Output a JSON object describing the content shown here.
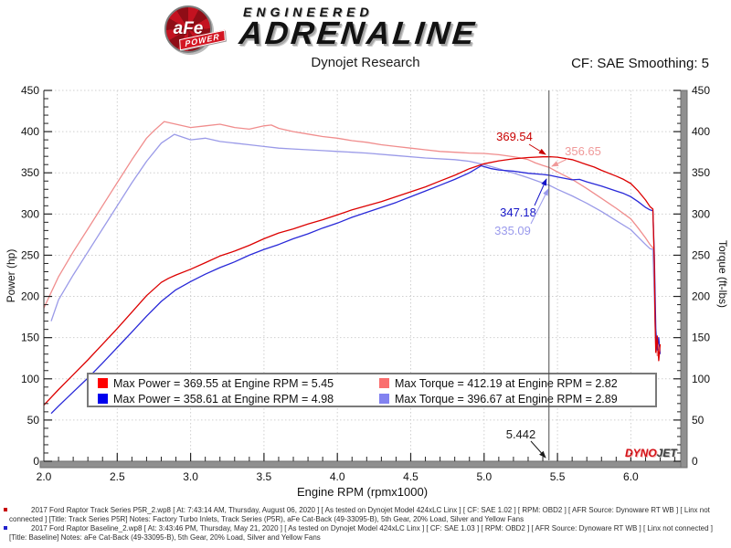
{
  "header": {
    "brand": {
      "badge_text": "aFe",
      "badge_sub": "POWER",
      "line1": "ENGINEERED",
      "line2": "ADRENALINE"
    },
    "title": "Dynojet Research",
    "cf_label": "CF: SAE Smoothing: 5"
  },
  "watermark": {
    "part1": "DYNO",
    "part2": "JET"
  },
  "legend": {
    "items": [
      {
        "swatch": "#ff0000",
        "text": "Max Power = 369.55 at Engine RPM = 5.45"
      },
      {
        "swatch": "#fa6e6e",
        "text": "Max Torque = 412.19 at Engine RPM = 2.82"
      },
      {
        "swatch": "#0000ee",
        "text": "Max Power = 358.61 at Engine RPM = 4.98"
      },
      {
        "swatch": "#8282f0",
        "text": "Max Torque = 396.67 at Engine RPM = 2.89"
      }
    ]
  },
  "chart_data": {
    "type": "line",
    "title": "Dynojet Research",
    "xlabel": "Engine RPM (rpmx1000)",
    "ylabel_left": "Power (hp)",
    "ylabel_right": "Torque (ft-lbs)",
    "xlim": [
      2.0,
      6.34
    ],
    "ylim": [
      0,
      450
    ],
    "x_ticks": [
      2.0,
      2.5,
      3.0,
      3.5,
      4.0,
      4.5,
      5.0,
      5.5,
      6.0
    ],
    "y_ticks": [
      0,
      50,
      100,
      150,
      200,
      250,
      300,
      350,
      400,
      450
    ],
    "grid": true,
    "legend_position": "bottom-center-inside",
    "cursor": {
      "x": 5.442,
      "label": "5.442"
    },
    "series": [
      {
        "id": "track-torque",
        "name": "Track Series P5R Torque (ft-lbs)",
        "color": "#f08d8d",
        "axis": "right",
        "points": [
          [
            2.0,
            186
          ],
          [
            2.1,
            224
          ],
          [
            2.2,
            254
          ],
          [
            2.3,
            282
          ],
          [
            2.4,
            310
          ],
          [
            2.5,
            338
          ],
          [
            2.6,
            366
          ],
          [
            2.7,
            392
          ],
          [
            2.75,
            401
          ],
          [
            2.82,
            412.19
          ],
          [
            2.9,
            409
          ],
          [
            3.0,
            405
          ],
          [
            3.1,
            407
          ],
          [
            3.2,
            409
          ],
          [
            3.3,
            405
          ],
          [
            3.4,
            403
          ],
          [
            3.5,
            407
          ],
          [
            3.55,
            408
          ],
          [
            3.6,
            404
          ],
          [
            3.7,
            400
          ],
          [
            3.8,
            397
          ],
          [
            3.9,
            394
          ],
          [
            4.0,
            392
          ],
          [
            4.1,
            389
          ],
          [
            4.2,
            387
          ],
          [
            4.3,
            384
          ],
          [
            4.4,
            382
          ],
          [
            4.5,
            380
          ],
          [
            4.6,
            378
          ],
          [
            4.7,
            376
          ],
          [
            4.8,
            375
          ],
          [
            4.9,
            374
          ],
          [
            5.0,
            373.5
          ],
          [
            5.1,
            372
          ],
          [
            5.2,
            369.5
          ],
          [
            5.25,
            368
          ],
          [
            5.3,
            366
          ],
          [
            5.35,
            362
          ],
          [
            5.4,
            359
          ],
          [
            5.442,
            356.65
          ],
          [
            5.5,
            351
          ],
          [
            5.6,
            342
          ],
          [
            5.7,
            331
          ],
          [
            5.8,
            319
          ],
          [
            5.9,
            307
          ],
          [
            6.0,
            294
          ],
          [
            6.05,
            283
          ],
          [
            6.1,
            271
          ],
          [
            6.13,
            263
          ],
          [
            6.15,
            259
          ],
          [
            6.16,
            210
          ],
          [
            6.17,
            150
          ],
          [
            6.18,
            128
          ],
          [
            6.2,
            133
          ]
        ]
      },
      {
        "id": "baseline-torque",
        "name": "Baseline Torque (ft-lbs)",
        "color": "#9a9ae8",
        "axis": "right",
        "points": [
          [
            2.05,
            170
          ],
          [
            2.1,
            196
          ],
          [
            2.2,
            226
          ],
          [
            2.3,
            254
          ],
          [
            2.4,
            282
          ],
          [
            2.5,
            310
          ],
          [
            2.6,
            338
          ],
          [
            2.7,
            364
          ],
          [
            2.8,
            386
          ],
          [
            2.89,
            396.67
          ],
          [
            3.0,
            390
          ],
          [
            3.1,
            392
          ],
          [
            3.2,
            388
          ],
          [
            3.3,
            386
          ],
          [
            3.4,
            384
          ],
          [
            3.5,
            382
          ],
          [
            3.6,
            380
          ],
          [
            3.7,
            379
          ],
          [
            3.8,
            378
          ],
          [
            3.9,
            377
          ],
          [
            4.0,
            376
          ],
          [
            4.2,
            374
          ],
          [
            4.4,
            371
          ],
          [
            4.6,
            368
          ],
          [
            4.8,
            366
          ],
          [
            4.9,
            364
          ],
          [
            5.0,
            360
          ],
          [
            5.1,
            355
          ],
          [
            5.15,
            352
          ],
          [
            5.2,
            349.8
          ],
          [
            5.3,
            344
          ],
          [
            5.442,
            335.09
          ],
          [
            5.5,
            330
          ],
          [
            5.6,
            322
          ],
          [
            5.7,
            313
          ],
          [
            5.8,
            303
          ],
          [
            5.9,
            292
          ],
          [
            6.0,
            281
          ],
          [
            6.05,
            272
          ],
          [
            6.1,
            263
          ],
          [
            6.13,
            258
          ],
          [
            6.15,
            257
          ],
          [
            6.16,
            200
          ],
          [
            6.17,
            140
          ],
          [
            6.19,
            135
          ]
        ]
      },
      {
        "id": "baseline-power",
        "name": "Baseline Power (hp)",
        "color": "#2828d8",
        "axis": "left",
        "points": [
          [
            2.05,
            58
          ],
          [
            2.1,
            67
          ],
          [
            2.2,
            84
          ],
          [
            2.3,
            101
          ],
          [
            2.4,
            119
          ],
          [
            2.5,
            138
          ],
          [
            2.6,
            157
          ],
          [
            2.7,
            176
          ],
          [
            2.8,
            194
          ],
          [
            2.9,
            208
          ],
          [
            3.0,
            218
          ],
          [
            3.1,
            227
          ],
          [
            3.2,
            235
          ],
          [
            3.3,
            242
          ],
          [
            3.4,
            250
          ],
          [
            3.5,
            257
          ],
          [
            3.6,
            263
          ],
          [
            3.7,
            270
          ],
          [
            3.8,
            276
          ],
          [
            3.9,
            283
          ],
          [
            4.0,
            289
          ],
          [
            4.1,
            296
          ],
          [
            4.2,
            302
          ],
          [
            4.3,
            308
          ],
          [
            4.4,
            314
          ],
          [
            4.5,
            321
          ],
          [
            4.6,
            328
          ],
          [
            4.7,
            335
          ],
          [
            4.8,
            342
          ],
          [
            4.9,
            350
          ],
          [
            4.98,
            358.61
          ],
          [
            5.05,
            355
          ],
          [
            5.1,
            353.5
          ],
          [
            5.2,
            352
          ],
          [
            5.3,
            349.5
          ],
          [
            5.4,
            348
          ],
          [
            5.442,
            347.18
          ],
          [
            5.5,
            345
          ],
          [
            5.6,
            341.5
          ],
          [
            5.65,
            342
          ],
          [
            5.7,
            339
          ],
          [
            5.8,
            334
          ],
          [
            5.9,
            328
          ],
          [
            5.95,
            325
          ],
          [
            6.0,
            321
          ],
          [
            6.05,
            315
          ],
          [
            6.1,
            308
          ],
          [
            6.13,
            305
          ],
          [
            6.15,
            304
          ],
          [
            6.16,
            250
          ],
          [
            6.17,
            160
          ],
          [
            6.18,
            135
          ],
          [
            6.19,
            150
          ],
          [
            6.2,
            130
          ]
        ]
      },
      {
        "id": "track-power",
        "name": "Track Series P5R Power (hp)",
        "color": "#dc0000",
        "axis": "left",
        "points": [
          [
            2.0,
            68
          ],
          [
            2.1,
            87
          ],
          [
            2.2,
            105
          ],
          [
            2.3,
            123
          ],
          [
            2.4,
            142
          ],
          [
            2.5,
            161
          ],
          [
            2.6,
            181
          ],
          [
            2.7,
            201
          ],
          [
            2.8,
            217
          ],
          [
            2.85,
            222
          ],
          [
            2.9,
            226
          ],
          [
            3.0,
            233
          ],
          [
            3.1,
            241
          ],
          [
            3.2,
            249
          ],
          [
            3.3,
            255
          ],
          [
            3.4,
            262
          ],
          [
            3.5,
            270
          ],
          [
            3.6,
            277
          ],
          [
            3.7,
            282
          ],
          [
            3.8,
            288
          ],
          [
            3.9,
            293
          ],
          [
            4.0,
            299
          ],
          [
            4.1,
            305
          ],
          [
            4.2,
            310
          ],
          [
            4.3,
            315
          ],
          [
            4.4,
            321
          ],
          [
            4.5,
            327
          ],
          [
            4.6,
            333
          ],
          [
            4.7,
            340
          ],
          [
            4.8,
            347
          ],
          [
            4.9,
            355
          ],
          [
            5.0,
            361
          ],
          [
            5.1,
            364.5
          ],
          [
            5.2,
            367
          ],
          [
            5.3,
            368.5
          ],
          [
            5.4,
            369.4
          ],
          [
            5.45,
            369.55
          ],
          [
            5.5,
            369
          ],
          [
            5.6,
            366
          ],
          [
            5.7,
            360
          ],
          [
            5.75,
            357
          ],
          [
            5.8,
            353
          ],
          [
            5.9,
            346
          ],
          [
            5.95,
            342
          ],
          [
            6.0,
            337
          ],
          [
            6.05,
            328
          ],
          [
            6.1,
            317
          ],
          [
            6.13,
            309
          ],
          [
            6.15,
            306
          ],
          [
            6.16,
            240
          ],
          [
            6.165,
            170
          ],
          [
            6.17,
            132
          ],
          [
            6.18,
            152
          ],
          [
            6.19,
            122
          ],
          [
            6.2,
            142
          ]
        ]
      }
    ],
    "annotations": [
      {
        "text": "369.54",
        "color": "#c80000",
        "label": [
          563,
          150
        ],
        "from": [
          579,
          158
        ],
        "to": [
          597,
          169
        ]
      },
      {
        "text": "356.65",
        "color": "#f09a9a",
        "label": [
          638,
          166
        ],
        "from": [
          621,
          174
        ],
        "to": [
          604,
          182
        ]
      },
      {
        "text": "347.18",
        "color": "#1616c8",
        "label": [
          567,
          233
        ],
        "from": [
          585,
          225
        ],
        "to": [
          598,
          196
        ]
      },
      {
        "text": "335.09",
        "color": "#9a9aec",
        "label": [
          561,
          253
        ],
        "from": [
          581,
          245
        ],
        "to": [
          600,
          207
        ]
      },
      {
        "text": "5.442",
        "color": "#1a1a1a",
        "label": [
          570,
          476
        ],
        "from": [
          581,
          483
        ],
        "to": [
          597,
          501
        ]
      }
    ]
  },
  "footer": {
    "runs": [
      {
        "bullet_color": "#c80000",
        "text": "2017 Ford Raptor Track Series P5R_2.wp8 [ At: 7:43:14 AM, Thursday, August 06, 2020 ] [ As tested on Dynojet Model 424xLC Linx ] [ CF: SAE 1.02 ] [ RPM: OBD2 ] [ AFR Source: Dynoware RT WB ] [ Linx not connected ] [Title: Track Series P5R]  Notes: Factory Turbo Inlets, Track Series (P5R), aFe Cat-Back (49-33095-B), 5th Gear, 20% Load, Silver and Yellow Fans"
      },
      {
        "bullet_color": "#2222cc",
        "text": "2017 Ford Raptor Baseline_2.wp8 [ At: 3:43:46 PM, Thursday, May 21, 2020 ] [ As tested on Dynojet Model 424xLC Linx ] [ CF: SAE 1.03 ] [ RPM: OBD2 ] [ AFR Source: Dynoware RT WB ] [ Linx not connected ] [Title: Baseline]  Notes: aFe Cat-Back (49-33095-B), 5th Gear, 20% Load, Silver and Yellow Fans"
      }
    ]
  }
}
